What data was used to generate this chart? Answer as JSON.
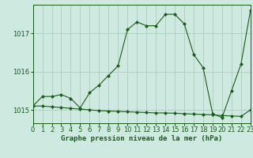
{
  "title": "Graphe pression niveau de la mer (hPa)",
  "bg_color": "#ceeae0",
  "grid_color": "#a8cfc0",
  "line_color": "#1a5c1a",
  "marker_color": "#1a5c1a",
  "x_min": 0,
  "x_max": 23,
  "y_min": 1014.65,
  "y_max": 1017.75,
  "yticks": [
    1015,
    1016,
    1017
  ],
  "xticks": [
    0,
    1,
    2,
    3,
    4,
    5,
    6,
    7,
    8,
    9,
    10,
    11,
    12,
    13,
    14,
    15,
    16,
    17,
    18,
    19,
    20,
    21,
    22,
    23
  ],
  "series1_x": [
    0,
    1,
    2,
    3,
    4,
    5,
    6,
    7,
    8,
    9,
    10,
    11,
    12,
    13,
    14,
    15,
    16,
    17,
    18,
    19,
    20,
    21,
    22,
    23
  ],
  "series1_y": [
    1015.1,
    1015.35,
    1015.35,
    1015.4,
    1015.3,
    1015.05,
    1015.45,
    1015.65,
    1015.9,
    1016.15,
    1017.1,
    1017.3,
    1017.2,
    1017.2,
    1017.5,
    1017.5,
    1017.25,
    1016.45,
    1016.1,
    1014.9,
    1014.8,
    1015.5,
    1016.2,
    1017.6
  ],
  "series2_x": [
    0,
    1,
    2,
    3,
    4,
    5,
    6,
    7,
    8,
    9,
    10,
    11,
    12,
    13,
    14,
    15,
    16,
    17,
    18,
    19,
    20,
    21,
    22,
    23
  ],
  "series2_y": [
    1015.1,
    1015.1,
    1015.08,
    1015.06,
    1015.04,
    1015.02,
    1015.0,
    1014.98,
    1014.97,
    1014.96,
    1014.95,
    1014.94,
    1014.93,
    1014.92,
    1014.92,
    1014.91,
    1014.9,
    1014.89,
    1014.88,
    1014.87,
    1014.85,
    1014.84,
    1014.83,
    1015.0
  ],
  "tick_fontsize": 6,
  "title_fontsize": 6.5
}
